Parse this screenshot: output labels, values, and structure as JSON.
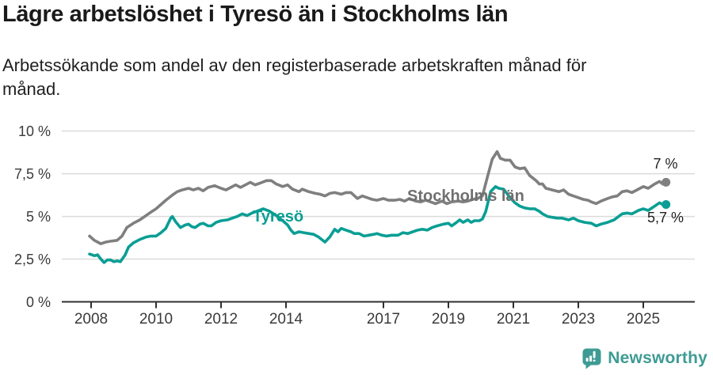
{
  "header": {
    "title": "Lägre arbetslöshet i Tyresö än i Stockholms län",
    "subtitle": "Arbetssökande som andel av den registerbaserade arbetskraften månad för månad."
  },
  "footer": {
    "brand": "Newsworthy",
    "logo_icon": "speech-bubble-bar-chart-icon"
  },
  "colors": {
    "tyreso_accent": "#0a9e94",
    "stockholm_gray": "#7f7f7f",
    "brand_teal": "#3e9b94",
    "gridline": "#dbdbdb",
    "axis": "#2f2f2f",
    "text": "#1a1a1a"
  },
  "chart_data": {
    "type": "line",
    "title": "Lägre arbetslöshet i Tyresö än i Stockholms län",
    "subtitle": "Arbetssökande som andel av den registerbaserade arbetskraften månad för månad.",
    "unit": "%",
    "ylim": [
      0,
      10
    ],
    "x_range": [
      2007.95,
      2025.7
    ],
    "grid": true,
    "legend_position": "inline-labels",
    "y_ticks": [
      {
        "value": 0,
        "label": "0 %"
      },
      {
        "value": 2.5,
        "label": "2,5 %"
      },
      {
        "value": 5,
        "label": "5 %"
      },
      {
        "value": 7.5,
        "label": "7,5 %"
      },
      {
        "value": 10,
        "label": "10 %"
      }
    ],
    "x_ticks": [
      {
        "value": 2008,
        "label": "2008"
      },
      {
        "value": 2010,
        "label": "2010"
      },
      {
        "value": 2012,
        "label": "2012"
      },
      {
        "value": 2014,
        "label": "2014"
      },
      {
        "value": 2017,
        "label": "2017"
      },
      {
        "value": 2019,
        "label": "2019"
      },
      {
        "value": 2021,
        "label": "2021"
      },
      {
        "value": 2023,
        "label": "2023"
      },
      {
        "value": 2025,
        "label": "2025"
      }
    ],
    "series": [
      {
        "name": "Stockholms län",
        "color": "#7f7f7f",
        "end_label": "7 %",
        "end_value": 7.0,
        "points": [
          [
            2007.95,
            3.85
          ],
          [
            2008.1,
            3.6
          ],
          [
            2008.3,
            3.4
          ],
          [
            2008.45,
            3.5
          ],
          [
            2008.6,
            3.55
          ],
          [
            2008.8,
            3.6
          ],
          [
            2008.95,
            3.85
          ],
          [
            2009.1,
            4.35
          ],
          [
            2009.3,
            4.6
          ],
          [
            2009.5,
            4.8
          ],
          [
            2009.65,
            5.0
          ],
          [
            2009.8,
            5.2
          ],
          [
            2010.0,
            5.45
          ],
          [
            2010.15,
            5.7
          ],
          [
            2010.3,
            5.95
          ],
          [
            2010.5,
            6.25
          ],
          [
            2010.65,
            6.45
          ],
          [
            2010.8,
            6.55
          ],
          [
            2011.0,
            6.65
          ],
          [
            2011.15,
            6.55
          ],
          [
            2011.3,
            6.65
          ],
          [
            2011.45,
            6.5
          ],
          [
            2011.6,
            6.7
          ],
          [
            2011.8,
            6.8
          ],
          [
            2012.0,
            6.65
          ],
          [
            2012.15,
            6.55
          ],
          [
            2012.3,
            6.7
          ],
          [
            2012.45,
            6.85
          ],
          [
            2012.6,
            6.7
          ],
          [
            2012.75,
            6.85
          ],
          [
            2012.9,
            7.0
          ],
          [
            2013.05,
            6.85
          ],
          [
            2013.2,
            6.95
          ],
          [
            2013.4,
            7.1
          ],
          [
            2013.55,
            7.1
          ],
          [
            2013.7,
            6.9
          ],
          [
            2013.9,
            6.75
          ],
          [
            2014.05,
            6.85
          ],
          [
            2014.2,
            6.6
          ],
          [
            2014.4,
            6.45
          ],
          [
            2014.5,
            6.6
          ],
          [
            2014.7,
            6.45
          ],
          [
            2014.9,
            6.35
          ],
          [
            2015.05,
            6.3
          ],
          [
            2015.2,
            6.2
          ],
          [
            2015.35,
            6.35
          ],
          [
            2015.5,
            6.4
          ],
          [
            2015.7,
            6.3
          ],
          [
            2015.85,
            6.4
          ],
          [
            2016.0,
            6.4
          ],
          [
            2016.2,
            6.05
          ],
          [
            2016.35,
            6.2
          ],
          [
            2016.5,
            6.1
          ],
          [
            2016.65,
            6.0
          ],
          [
            2016.8,
            5.95
          ],
          [
            2017.0,
            6.05
          ],
          [
            2017.15,
            5.95
          ],
          [
            2017.35,
            5.95
          ],
          [
            2017.5,
            6.0
          ],
          [
            2017.65,
            5.9
          ],
          [
            2017.8,
            6.05
          ],
          [
            2018.0,
            5.9
          ],
          [
            2018.15,
            5.85
          ],
          [
            2018.3,
            5.95
          ],
          [
            2018.45,
            5.85
          ],
          [
            2018.6,
            5.75
          ],
          [
            2018.8,
            5.9
          ],
          [
            2018.95,
            5.75
          ],
          [
            2019.1,
            5.85
          ],
          [
            2019.3,
            5.9
          ],
          [
            2019.45,
            5.85
          ],
          [
            2019.6,
            5.9
          ],
          [
            2019.75,
            6.0
          ],
          [
            2019.9,
            6.05
          ],
          [
            2020.05,
            6.2
          ],
          [
            2020.2,
            7.3
          ],
          [
            2020.35,
            8.35
          ],
          [
            2020.5,
            8.8
          ],
          [
            2020.6,
            8.4
          ],
          [
            2020.75,
            8.3
          ],
          [
            2020.9,
            8.3
          ],
          [
            2021.05,
            7.9
          ],
          [
            2021.2,
            7.8
          ],
          [
            2021.35,
            7.85
          ],
          [
            2021.5,
            7.4
          ],
          [
            2021.7,
            7.1
          ],
          [
            2021.8,
            6.9
          ],
          [
            2021.9,
            6.9
          ],
          [
            2022.0,
            6.65
          ],
          [
            2022.2,
            6.55
          ],
          [
            2022.4,
            6.45
          ],
          [
            2022.55,
            6.55
          ],
          [
            2022.7,
            6.3
          ],
          [
            2022.85,
            6.2
          ],
          [
            2023.0,
            6.1
          ],
          [
            2023.15,
            6.0
          ],
          [
            2023.3,
            5.95
          ],
          [
            2023.4,
            5.85
          ],
          [
            2023.55,
            5.75
          ],
          [
            2023.7,
            5.9
          ],
          [
            2023.9,
            6.05
          ],
          [
            2024.05,
            6.15
          ],
          [
            2024.2,
            6.2
          ],
          [
            2024.35,
            6.45
          ],
          [
            2024.5,
            6.5
          ],
          [
            2024.65,
            6.4
          ],
          [
            2024.85,
            6.6
          ],
          [
            2025.0,
            6.75
          ],
          [
            2025.15,
            6.65
          ],
          [
            2025.35,
            6.9
          ],
          [
            2025.5,
            7.05
          ],
          [
            2025.6,
            6.9
          ],
          [
            2025.7,
            7.0
          ]
        ]
      },
      {
        "name": "Tyresö",
        "color": "#0a9e94",
        "end_label": "5,7 %",
        "end_value": 5.7,
        "points": [
          [
            2007.95,
            2.8
          ],
          [
            2008.1,
            2.7
          ],
          [
            2008.2,
            2.75
          ],
          [
            2008.3,
            2.5
          ],
          [
            2008.4,
            2.3
          ],
          [
            2008.5,
            2.45
          ],
          [
            2008.6,
            2.45
          ],
          [
            2008.7,
            2.35
          ],
          [
            2008.8,
            2.4
          ],
          [
            2008.9,
            2.35
          ],
          [
            2009.05,
            2.75
          ],
          [
            2009.15,
            3.2
          ],
          [
            2009.3,
            3.45
          ],
          [
            2009.5,
            3.65
          ],
          [
            2009.7,
            3.8
          ],
          [
            2009.85,
            3.85
          ],
          [
            2010.0,
            3.85
          ],
          [
            2010.15,
            4.05
          ],
          [
            2010.3,
            4.3
          ],
          [
            2010.45,
            4.9
          ],
          [
            2010.5,
            5.0
          ],
          [
            2010.6,
            4.7
          ],
          [
            2010.75,
            4.35
          ],
          [
            2010.9,
            4.5
          ],
          [
            2011.0,
            4.55
          ],
          [
            2011.1,
            4.4
          ],
          [
            2011.2,
            4.35
          ],
          [
            2011.35,
            4.55
          ],
          [
            2011.45,
            4.6
          ],
          [
            2011.6,
            4.45
          ],
          [
            2011.7,
            4.45
          ],
          [
            2011.85,
            4.65
          ],
          [
            2012.0,
            4.75
          ],
          [
            2012.2,
            4.8
          ],
          [
            2012.35,
            4.9
          ],
          [
            2012.5,
            5.0
          ],
          [
            2012.65,
            5.15
          ],
          [
            2012.8,
            5.05
          ],
          [
            2012.95,
            5.2
          ],
          [
            2013.1,
            5.3
          ],
          [
            2013.3,
            5.45
          ],
          [
            2013.5,
            5.3
          ],
          [
            2013.7,
            5.05
          ],
          [
            2013.9,
            4.75
          ],
          [
            2014.05,
            4.5
          ],
          [
            2014.15,
            4.2
          ],
          [
            2014.25,
            4.0
          ],
          [
            2014.4,
            4.1
          ],
          [
            2014.55,
            4.05
          ],
          [
            2014.7,
            4.0
          ],
          [
            2014.85,
            3.95
          ],
          [
            2015.0,
            3.8
          ],
          [
            2015.2,
            3.5
          ],
          [
            2015.35,
            3.8
          ],
          [
            2015.5,
            4.25
          ],
          [
            2015.6,
            4.1
          ],
          [
            2015.7,
            4.3
          ],
          [
            2015.85,
            4.2
          ],
          [
            2016.0,
            4.1
          ],
          [
            2016.1,
            4.0
          ],
          [
            2016.25,
            4.0
          ],
          [
            2016.4,
            3.85
          ],
          [
            2016.55,
            3.9
          ],
          [
            2016.7,
            3.95
          ],
          [
            2016.8,
            4.0
          ],
          [
            2016.95,
            3.9
          ],
          [
            2017.1,
            3.85
          ],
          [
            2017.25,
            3.9
          ],
          [
            2017.45,
            3.9
          ],
          [
            2017.6,
            4.05
          ],
          [
            2017.75,
            4.0
          ],
          [
            2017.9,
            4.1
          ],
          [
            2018.05,
            4.2
          ],
          [
            2018.2,
            4.25
          ],
          [
            2018.35,
            4.2
          ],
          [
            2018.5,
            4.35
          ],
          [
            2018.65,
            4.45
          ],
          [
            2018.85,
            4.55
          ],
          [
            2019.0,
            4.6
          ],
          [
            2019.1,
            4.45
          ],
          [
            2019.25,
            4.65
          ],
          [
            2019.35,
            4.8
          ],
          [
            2019.45,
            4.65
          ],
          [
            2019.6,
            4.8
          ],
          [
            2019.7,
            4.65
          ],
          [
            2019.8,
            4.75
          ],
          [
            2019.95,
            4.75
          ],
          [
            2020.05,
            4.85
          ],
          [
            2020.15,
            5.3
          ],
          [
            2020.3,
            6.45
          ],
          [
            2020.45,
            6.75
          ],
          [
            2020.55,
            6.65
          ],
          [
            2020.7,
            6.6
          ],
          [
            2020.9,
            6.1
          ],
          [
            2021.05,
            5.8
          ],
          [
            2021.2,
            5.6
          ],
          [
            2021.35,
            5.5
          ],
          [
            2021.5,
            5.45
          ],
          [
            2021.65,
            5.45
          ],
          [
            2021.8,
            5.3
          ],
          [
            2021.9,
            5.15
          ],
          [
            2022.05,
            5.0
          ],
          [
            2022.2,
            4.95
          ],
          [
            2022.35,
            4.9
          ],
          [
            2022.5,
            4.9
          ],
          [
            2022.7,
            4.8
          ],
          [
            2022.85,
            4.9
          ],
          [
            2023.0,
            4.75
          ],
          [
            2023.2,
            4.65
          ],
          [
            2023.4,
            4.6
          ],
          [
            2023.55,
            4.45
          ],
          [
            2023.7,
            4.55
          ],
          [
            2023.9,
            4.65
          ],
          [
            2024.1,
            4.8
          ],
          [
            2024.35,
            5.15
          ],
          [
            2024.5,
            5.2
          ],
          [
            2024.65,
            5.15
          ],
          [
            2024.85,
            5.35
          ],
          [
            2025.0,
            5.45
          ],
          [
            2025.15,
            5.35
          ],
          [
            2025.35,
            5.6
          ],
          [
            2025.5,
            5.8
          ],
          [
            2025.6,
            5.7
          ],
          [
            2025.7,
            5.7
          ]
        ]
      }
    ]
  }
}
